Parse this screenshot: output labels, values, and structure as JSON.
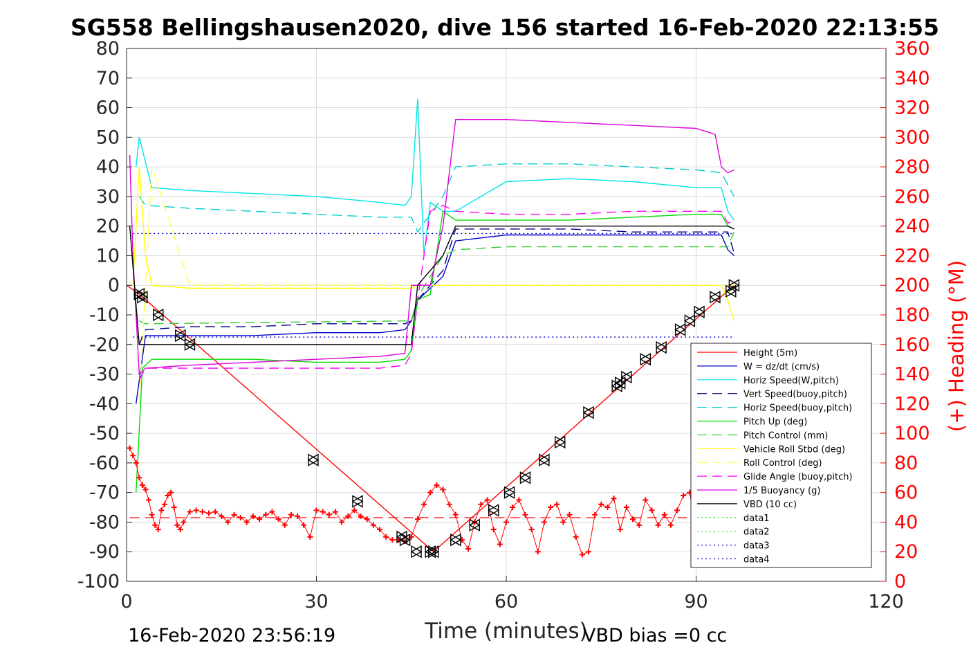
{
  "chart_data": {
    "type": "line",
    "title": "SG558 Bellingshausen2020, dive 156 started 16-Feb-2020 22:13:55",
    "xlabel": "Time (minutes)",
    "ylabel": "",
    "y2label": "(+) Heading (°M)",
    "xlim": [
      0,
      120
    ],
    "ylim": [
      -100,
      80
    ],
    "y2lim": [
      0,
      360
    ],
    "xticks": [
      "0",
      "30",
      "60",
      "90",
      "120"
    ],
    "yticks": [
      "80",
      "70",
      "60",
      "50",
      "40",
      "30",
      "20",
      "10",
      "0",
      "-10",
      "-20",
      "-30",
      "-40",
      "-50",
      "-60",
      "-70",
      "-80",
      "-90",
      "-100"
    ],
    "y2ticks": [
      "360",
      "340",
      "320",
      "300",
      "280",
      "260",
      "240",
      "220",
      "200",
      "180",
      "160",
      "140",
      "120",
      "100",
      "80",
      "60",
      "40",
      "20",
      "0"
    ],
    "grid": true,
    "legend_position": "lower-right",
    "footer_left": "16-Feb-2020 23:56:19",
    "footer_right": "VBD bias =0 cc",
    "series": [
      {
        "name": "Height (5m)",
        "color": "#ff0000",
        "style": "solid",
        "x": [
          0,
          2,
          48.5,
          96
        ],
        "y": [
          0,
          -3,
          -90,
          0
        ]
      },
      {
        "name": "W = dz/dt (cm/s)",
        "color": "#0000cc",
        "style": "solid",
        "x": [
          1.5,
          3,
          10,
          20,
          30,
          40,
          44,
          45,
          46,
          50,
          52,
          60,
          70,
          80,
          90,
          94,
          95,
          96
        ],
        "y": [
          -40,
          -17,
          -17,
          -17,
          -16,
          -16,
          -15,
          -12,
          -5,
          3,
          15,
          17,
          17,
          17,
          17,
          17,
          12,
          10
        ]
      },
      {
        "name": "Horiz Speed(W,pitch)",
        "color": "#00e5e5",
        "style": "solid",
        "x": [
          1.5,
          2,
          4,
          10,
          20,
          30,
          40,
          44,
          45,
          46,
          47,
          48,
          50,
          52,
          60,
          70,
          80,
          90,
          94,
          95,
          96
        ],
        "y": [
          40,
          50,
          33,
          32,
          31,
          30,
          28,
          27,
          30,
          63,
          10,
          28,
          25,
          25,
          35,
          36,
          35,
          33,
          33,
          25,
          22
        ]
      },
      {
        "name": "Vert Speed(buoy,pitch)",
        "color": "#00008b",
        "style": "dashed",
        "x": [
          2,
          3,
          10,
          20,
          30,
          40,
          44,
          45,
          46,
          50,
          52,
          60,
          70,
          80,
          90,
          95,
          96
        ],
        "y": [
          -20,
          -15,
          -14,
          -14,
          -13,
          -13,
          -13,
          -12,
          -5,
          5,
          19,
          19,
          19,
          18,
          18,
          18,
          11
        ]
      },
      {
        "name": "Horiz Speed(buoy,pitch)",
        "color": "#00ced1",
        "style": "dashed",
        "x": [
          2,
          3,
          10,
          20,
          30,
          40,
          45,
          46,
          50,
          52,
          60,
          70,
          80,
          90,
          94,
          96
        ],
        "y": [
          30,
          27,
          26,
          25,
          24,
          23,
          23,
          18,
          30,
          40,
          41,
          41,
          40,
          39,
          38,
          30
        ]
      },
      {
        "name": "Pitch Up (deg)",
        "color": "#00dd00",
        "style": "solid",
        "x": [
          1.5,
          2.5,
          4,
          10,
          20,
          30,
          40,
          44,
          45,
          46,
          48,
          50,
          52,
          60,
          70,
          80,
          90,
          94,
          95,
          96
        ],
        "y": [
          -70,
          -28,
          -25,
          -25,
          -25,
          -26,
          -26,
          -25,
          -22,
          -5,
          -3,
          25,
          22,
          22,
          22,
          23,
          24,
          24,
          20,
          19
        ]
      },
      {
        "name": "Pitch Control (mm)",
        "color": "#33cc33",
        "style": "dashed",
        "x": [
          2,
          3,
          45,
          46,
          50,
          52,
          60,
          70,
          80,
          90,
          95,
          96
        ],
        "y": [
          -12,
          -13,
          -12,
          -4,
          10,
          12,
          13,
          13,
          13,
          13,
          13,
          18
        ]
      },
      {
        "name": "Vehicle Roll Stbd (deg)",
        "color": "#ffff00",
        "style": "solid",
        "x": [
          1,
          2,
          3,
          4,
          10,
          20,
          30,
          40,
          45,
          46,
          50,
          52,
          60,
          70,
          80,
          90,
          94,
          95,
          96
        ],
        "y": [
          0,
          40,
          10,
          0,
          -1,
          -1,
          -1,
          -1,
          -1,
          0,
          0,
          0,
          0,
          0,
          0,
          0,
          0,
          -5,
          -12
        ]
      },
      {
        "name": "Roll Control (deg)",
        "color": "#ffff44",
        "style": "dashed",
        "x": [
          2,
          4,
          10,
          20,
          30,
          40,
          45,
          46,
          50,
          60,
          70,
          80,
          90,
          96
        ],
        "y": [
          -40,
          40,
          0,
          0,
          0,
          0,
          0,
          0,
          0,
          0,
          0,
          0,
          0,
          0
        ]
      },
      {
        "name": "Glide Angle (buoy,pitch)",
        "color": "#ff00ff",
        "style": "dashed",
        "x": [
          2,
          3,
          10,
          20,
          30,
          40,
          44,
          45,
          46,
          48,
          50,
          52,
          60,
          70,
          80,
          90,
          94,
          95,
          96
        ],
        "y": [
          -32,
          -28,
          -28,
          -28,
          -28,
          -28,
          -27,
          -23,
          -5,
          25,
          27,
          25,
          24,
          24,
          25,
          25,
          25,
          21,
          22
        ]
      },
      {
        "name": "1/5 Buoyancy (g)",
        "color": "#dd00dd",
        "style": "solid",
        "x": [
          0.5,
          1,
          2,
          3,
          10,
          20,
          30,
          40,
          44,
          45,
          46,
          48,
          50,
          52,
          60,
          70,
          80,
          90,
          93,
          94,
          95,
          96
        ],
        "y": [
          44,
          10,
          -30,
          -28,
          -27,
          -26,
          -25,
          -24,
          -23,
          0,
          0,
          0,
          20,
          56,
          56,
          55,
          54,
          53,
          51,
          40,
          38,
          39
        ]
      },
      {
        "name": "VBD (10 cc)",
        "color": "#000000",
        "style": "solid",
        "x": [
          0.5,
          2,
          3,
          44,
          45,
          46,
          50,
          52,
          60,
          70,
          80,
          90,
          95,
          96
        ],
        "y": [
          20,
          -20,
          -20,
          -20,
          -20,
          0,
          10,
          20,
          20,
          20,
          20,
          20,
          20,
          19
        ]
      },
      {
        "name": "data1",
        "color": "#00dd00",
        "style": "dotted",
        "x": [],
        "y": []
      },
      {
        "name": "data2",
        "color": "#00dd00",
        "style": "dotted",
        "x": [],
        "y": []
      },
      {
        "name": "data3",
        "color": "#0000cc",
        "style": "dotted",
        "x": [
          1,
          96
        ],
        "y": [
          17.5,
          17.5
        ]
      },
      {
        "name": "data4",
        "color": "#0000cc",
        "style": "dotted",
        "x": [
          1,
          96
        ],
        "y": [
          -17.5,
          -17.5
        ]
      }
    ],
    "heading_series": {
      "color": "#ff0000",
      "marker": "+",
      "axis": "right",
      "mean_line": 43,
      "x": [
        0.5,
        1,
        1.5,
        2,
        2.5,
        3,
        3.5,
        4,
        4.5,
        5,
        5.5,
        6,
        6.5,
        7,
        7.5,
        8,
        8.5,
        9,
        10,
        11,
        12,
        13,
        14,
        15,
        16,
        17,
        18,
        19,
        20,
        21,
        22,
        23,
        24,
        25,
        26,
        27,
        28,
        29,
        30,
        31,
        32,
        33,
        34,
        35,
        36,
        37,
        38,
        39,
        40,
        41,
        42,
        43,
        44,
        45,
        46,
        47,
        48,
        49,
        50,
        51,
        52,
        53,
        54,
        55,
        56,
        57,
        58,
        59,
        60,
        61,
        62,
        63,
        64,
        65,
        66,
        67,
        68,
        69,
        70,
        71,
        72,
        73,
        74,
        75,
        76,
        77,
        78,
        79,
        80,
        81,
        82,
        83,
        84,
        85,
        86,
        87,
        88,
        89,
        90
      ],
      "y": [
        90,
        85,
        80,
        70,
        65,
        62,
        55,
        45,
        38,
        35,
        48,
        52,
        58,
        60,
        50,
        38,
        35,
        40,
        47,
        48,
        47,
        46,
        47,
        44,
        40,
        45,
        43,
        40,
        44,
        42,
        45,
        47,
        42,
        38,
        45,
        44,
        38,
        30,
        48,
        47,
        45,
        47,
        40,
        44,
        48,
        44,
        42,
        38,
        35,
        30,
        28,
        28,
        27,
        30,
        42,
        52,
        60,
        65,
        62,
        52,
        45,
        28,
        22,
        40,
        52,
        55,
        35,
        25,
        40,
        50,
        55,
        45,
        35,
        20,
        40,
        50,
        52,
        40,
        45,
        30,
        18,
        20,
        45,
        52,
        50,
        56,
        35,
        50,
        42,
        38,
        55,
        48,
        38,
        45,
        38,
        48,
        58,
        60,
        30
      ]
    },
    "vbd_markers": {
      "x": [
        2,
        2.5,
        5,
        8.5,
        10,
        29.5,
        36.5,
        43.5,
        44,
        45.8,
        48,
        48.5,
        52,
        55,
        58,
        60.5,
        63,
        66,
        68.5,
        73,
        77.5,
        78,
        79,
        82,
        84.5,
        87.5,
        89,
        90.5,
        93,
        95.5,
        96
      ],
      "y": [
        -3,
        -4,
        -10,
        -17,
        -20,
        -59,
        -73,
        -85,
        -86,
        -90,
        -90,
        -90,
        -86,
        -81,
        -76,
        -70,
        -65,
        -59,
        -53,
        -43,
        -34,
        -33,
        -31,
        -25,
        -21,
        -15,
        -12,
        -9,
        -4,
        -2,
        0
      ]
    }
  },
  "legend": {
    "items": [
      "Height (5m)",
      "W = dz/dt (cm/s)",
      "Horiz Speed(W,pitch)",
      "Vert Speed(buoy,pitch)",
      "Horiz Speed(buoy,pitch)",
      "Pitch Up (deg)",
      "Pitch Control (mm)",
      "Vehicle Roll Stbd (deg)",
      "Roll Control (deg)",
      "Glide Angle (buoy,pitch)",
      "1/5 Buoyancy (g)",
      "VBD (10 cc)",
      "data1",
      "data2",
      "data3",
      "data4"
    ]
  }
}
